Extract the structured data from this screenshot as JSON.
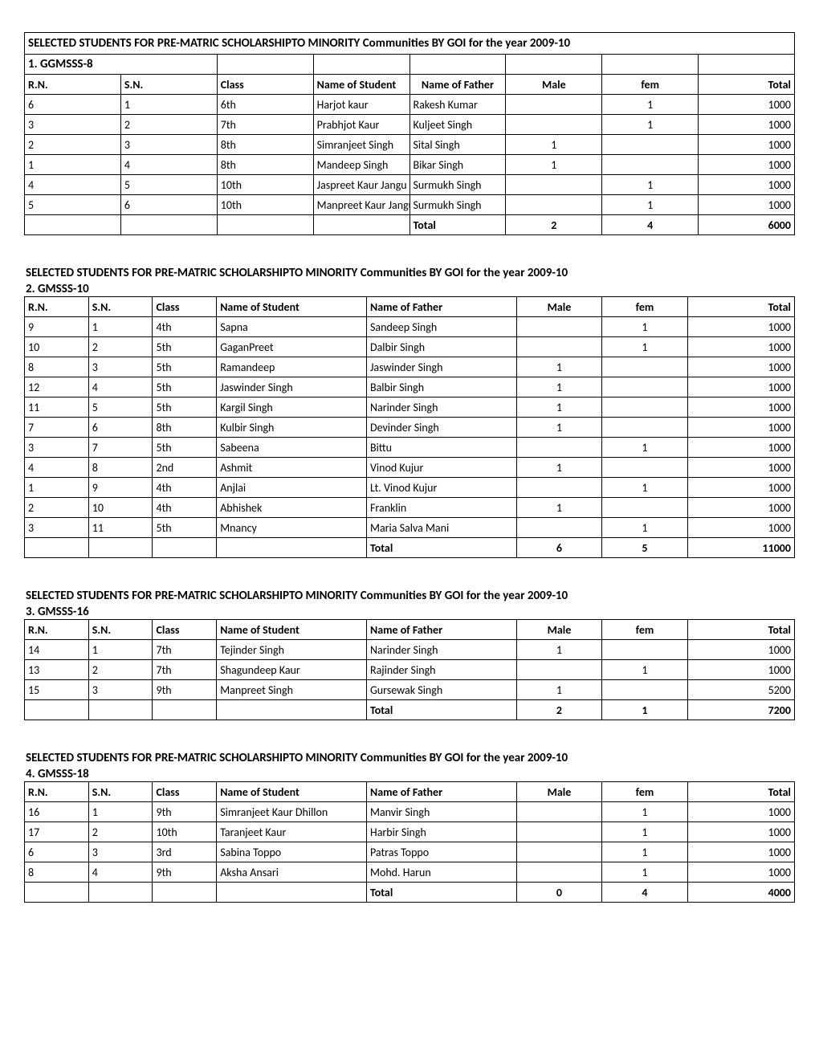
{
  "main_title": "SELECTED STUDENTS FOR PRE-MATRIC SCHOLARSHIPTO MINORITY Communities BY GOI for the year 2009-10",
  "headers": {
    "rn": "R.N.",
    "sn": "S.N.",
    "class": "Class",
    "student": "Name of Student",
    "father": "Name of Father",
    "male": "Male",
    "fem": "fem",
    "total": "Total"
  },
  "total_label": "Total",
  "sections": [
    {
      "sub": "1. GGMSSS-8",
      "father_header_align": "center",
      "rows": [
        {
          "rn": "6",
          "sn": "1",
          "class": "6th",
          "student": "Harjot kaur",
          "father": "Rakesh Kumar",
          "male": "",
          "fem": "1",
          "total": "1000"
        },
        {
          "rn": "3",
          "sn": "2",
          "class": "7th",
          "student": "Prabhjot Kaur",
          "father": "Kuljeet Singh",
          "male": "",
          "fem": "1",
          "total": "1000"
        },
        {
          "rn": "2",
          "sn": "3",
          "class": "8th",
          "student": "Simranjeet Singh",
          "father": "Sital Singh",
          "male": "1",
          "fem": "",
          "total": "1000"
        },
        {
          "rn": "1",
          "sn": "4",
          "class": "8th",
          "student": "Mandeep Singh",
          "father": "Bikar Singh",
          "male": "1",
          "fem": "",
          "total": "1000"
        },
        {
          "rn": "4",
          "sn": "5",
          "class": "10th",
          "student": "Jaspreet Kaur Jangu",
          "father": "Surmukh Singh",
          "male": "",
          "fem": "1",
          "total": "1000"
        },
        {
          "rn": "5",
          "sn": "6",
          "class": "10th",
          "student": "Manpreet Kaur Jangu",
          "father": "Surmukh Singh",
          "male": "",
          "fem": "1",
          "total": "1000"
        }
      ],
      "totals": {
        "male": "2",
        "fem": "4",
        "total": "6000"
      }
    },
    {
      "sub": "2. GMSSS-10",
      "father_header_align": "left",
      "rows": [
        {
          "rn": "9",
          "sn": "1",
          "class": "4th",
          "student": "Sapna",
          "father": "Sandeep Singh",
          "male": "",
          "fem": "1",
          "total": "1000"
        },
        {
          "rn": "10",
          "sn": "2",
          "class": "5th",
          "student": "GaganPreet",
          "father": "Dalbir Singh",
          "male": "",
          "fem": "1",
          "total": "1000"
        },
        {
          "rn": "8",
          "sn": "3",
          "class": "5th",
          "student": "Ramandeep",
          "father": "Jaswinder Singh",
          "male": "1",
          "fem": "",
          "total": "1000"
        },
        {
          "rn": "12",
          "sn": "4",
          "class": "5th",
          "student": "Jaswinder Singh",
          "father": "Balbir Singh",
          "male": "1",
          "fem": "",
          "total": "1000"
        },
        {
          "rn": "11",
          "sn": "5",
          "class": "5th",
          "student": "Kargil Singh",
          "father": "Narinder Singh",
          "male": "1",
          "fem": "",
          "total": "1000"
        },
        {
          "rn": "7",
          "sn": "6",
          "class": "8th",
          "student": "Kulbir Singh",
          "father": "Devinder Singh",
          "male": "1",
          "fem": "",
          "total": "1000"
        },
        {
          "rn": "3",
          "sn": "7",
          "class": "5th",
          "student": "Sabeena",
          "father": "Bittu",
          "male": "",
          "fem": "1",
          "total": "1000"
        },
        {
          "rn": "4",
          "sn": "8",
          "class": "2nd",
          "student": "Ashmit",
          "father": "Vinod Kujur",
          "male": "1",
          "fem": "",
          "total": "1000"
        },
        {
          "rn": "1",
          "sn": "9",
          "class": "4th",
          "student": "Anjlai",
          "father": "Lt. Vinod Kujur",
          "male": "",
          "fem": "1",
          "total": "1000"
        },
        {
          "rn": "2",
          "sn": "10",
          "class": "4th",
          "student": "Abhishek",
          "father": "Franklin",
          "male": "1",
          "fem": "",
          "total": "1000"
        },
        {
          "rn": "3",
          "sn": "11",
          "class": "5th",
          "student": "Mnancy",
          "father": "Maria Salva Mani",
          "male": "",
          "fem": "1",
          "total": "1000"
        }
      ],
      "totals": {
        "male": "6",
        "fem": "5",
        "total": "11000"
      }
    },
    {
      "sub": "3. GMSSS-16",
      "father_header_align": "left",
      "rows": [
        {
          "rn": "14",
          "sn": "1",
          "class": "7th",
          "student": "Tejinder Singh",
          "father": "Narinder Singh",
          "male": "1",
          "fem": "",
          "total": "1000"
        },
        {
          "rn": "13",
          "sn": "2",
          "class": "7th",
          "student": "Shagundeep Kaur",
          "father": "Rajinder Singh",
          "male": "",
          "fem": "1",
          "total": "1000"
        },
        {
          "rn": "15",
          "sn": "3",
          "class": "9th",
          "student": "Manpreet Singh",
          "father": "Gursewak Singh",
          "male": "1",
          "fem": "",
          "total": "5200"
        }
      ],
      "totals": {
        "male": "2",
        "fem": "1",
        "total": "7200"
      }
    },
    {
      "sub": "4. GMSSS-18",
      "father_header_align": "left",
      "rows": [
        {
          "rn": "16",
          "sn": "1",
          "class": "9th",
          "student": "Simranjeet Kaur Dhillon",
          "father": "Manvir Singh",
          "male": "",
          "fem": "1",
          "total": "1000"
        },
        {
          "rn": "17",
          "sn": "2",
          "class": "10th",
          "student": "Taranjeet Kaur",
          "father": "Harbir Singh",
          "male": "",
          "fem": "1",
          "total": "1000"
        },
        {
          "rn": "6",
          "sn": "3",
          "class": "3rd",
          "student": "Sabina Toppo",
          "father": "Patras Toppo",
          "male": "",
          "fem": "1",
          "total": "1000"
        },
        {
          "rn": "8",
          "sn": "4",
          "class": "9th",
          "student": "Aksha Ansari",
          "father": "Mohd. Harun",
          "male": "",
          "fem": "1",
          "total": "1000"
        }
      ],
      "totals": {
        "male": "0",
        "fem": "4",
        "total": "4000"
      }
    }
  ]
}
